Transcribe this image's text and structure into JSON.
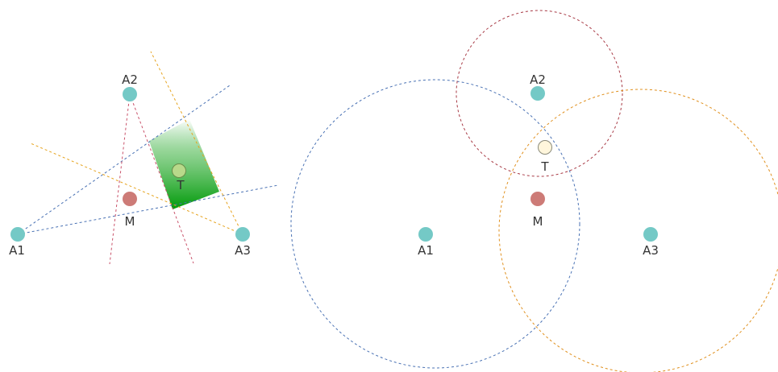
{
  "colors": {
    "anchor": "#74c9c6",
    "measured": "#cd7b77",
    "target_left": "#b8d98a",
    "target_right": "#fff6dc",
    "blue": "#4a72b4",
    "red": "#a83a45",
    "orange": "#e0901e",
    "yellow": "#e6a41f",
    "pink": "#c9526a",
    "green_dark": "#009a0a"
  },
  "left_panel": {
    "labels": {
      "a1": "A1",
      "a2": "A2",
      "a3": "A3",
      "m": "M",
      "t": "T"
    }
  },
  "right_panel": {
    "labels": {
      "a1": "A1",
      "a2": "A2",
      "a3": "A3",
      "m": "M",
      "t": "T"
    }
  }
}
